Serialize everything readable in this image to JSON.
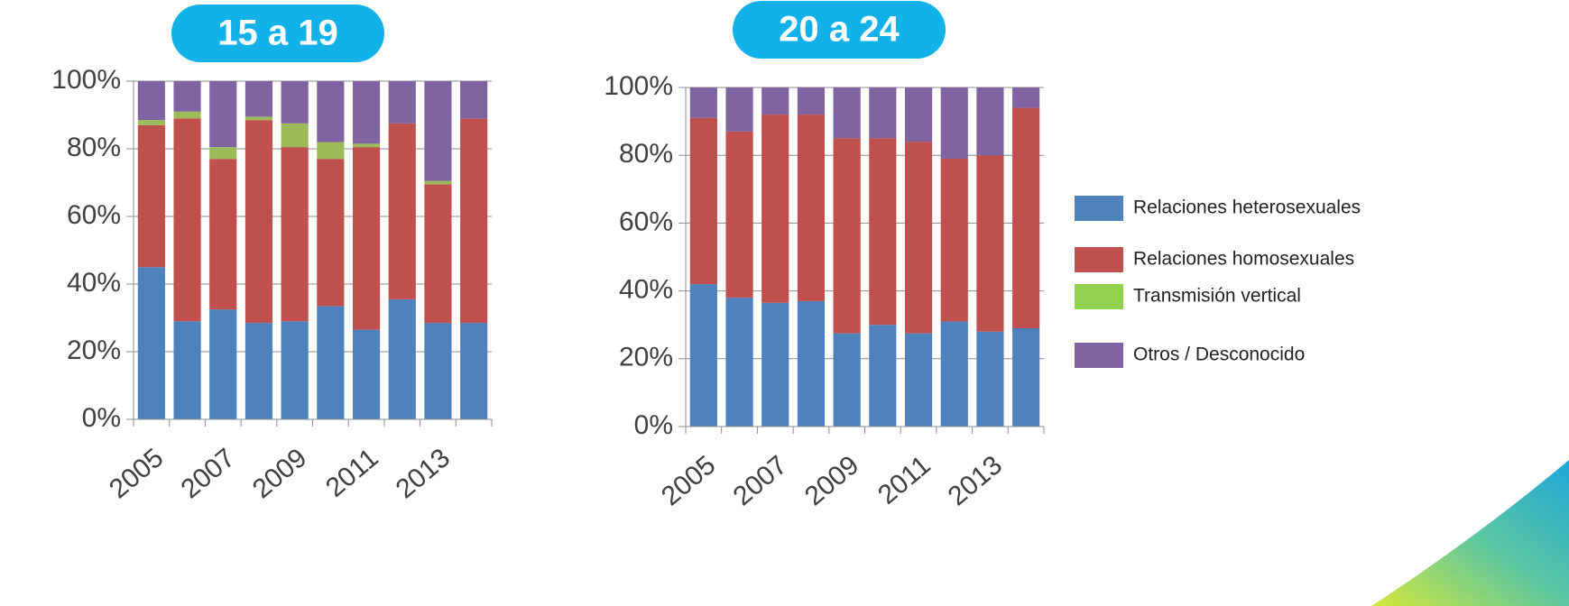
{
  "chart_data": [
    {
      "type": "stacked_bar",
      "title": "15 a 19",
      "categories": [
        "2005",
        null,
        "2007",
        null,
        "2009",
        null,
        "2011",
        null,
        "2013",
        null
      ],
      "series": [
        {
          "color": "#4f81bd",
          "values": [
            45,
            29,
            32.5,
            28.5,
            29,
            33.5,
            26.5,
            35.5,
            28.5,
            28.5
          ]
        },
        {
          "color": "#c0504d",
          "values": [
            42,
            60,
            44.5,
            60,
            51.5,
            43.5,
            54,
            52,
            41,
            60.5
          ]
        },
        {
          "color": "#9bbb59",
          "values": [
            1.5,
            2,
            3.5,
            1,
            7,
            5,
            1,
            0,
            1,
            0
          ]
        },
        {
          "color": "#8064a2",
          "values": [
            11.5,
            9,
            19.5,
            10.5,
            12.5,
            18,
            18.5,
            12.5,
            29.5,
            11
          ]
        }
      ],
      "ylim": [
        0,
        100
      ],
      "yticks": [
        {
          "value": 0,
          "label": "0%"
        },
        {
          "value": 20,
          "label": "20%"
        },
        {
          "value": 40,
          "label": "40%"
        },
        {
          "value": 60,
          "label": "60%"
        },
        {
          "value": 80,
          "label": "80%"
        },
        {
          "value": 100,
          "label": "100%"
        }
      ]
    },
    {
      "type": "stacked_bar",
      "title": "20 a 24",
      "categories": [
        "2005",
        null,
        "2007",
        null,
        "2009",
        null,
        "2011",
        null,
        "2013",
        null
      ],
      "series": [
        {
          "name": "Relaciones heterosexuales",
          "color": "#4f81bd",
          "values": [
            42,
            38,
            36.5,
            37,
            27.5,
            30,
            27.5,
            31,
            28,
            29
          ]
        },
        {
          "name": "Relaciones homosexuales",
          "color": "#c0504d",
          "values": [
            49,
            49,
            55.5,
            55,
            57.5,
            55,
            56.5,
            48,
            52,
            65
          ]
        },
        {
          "name": "Transmisión vertical",
          "color": "#92d050",
          "values": [
            0,
            0,
            0,
            0,
            0,
            0,
            0,
            0,
            0,
            0
          ]
        },
        {
          "name": "Otros / Desconocido",
          "color": "#8064a2",
          "values": [
            9,
            13,
            8,
            8,
            15,
            15,
            16,
            21,
            20,
            6
          ]
        }
      ],
      "ylim": [
        0,
        100
      ],
      "yticks": [
        {
          "value": 0,
          "label": "0%"
        },
        {
          "value": 20,
          "label": "20%"
        },
        {
          "value": 40,
          "label": "40%"
        },
        {
          "value": 60,
          "label": "60%"
        },
        {
          "value": 80,
          "label": "80%"
        },
        {
          "value": 100,
          "label": "100%"
        }
      ]
    }
  ]
}
